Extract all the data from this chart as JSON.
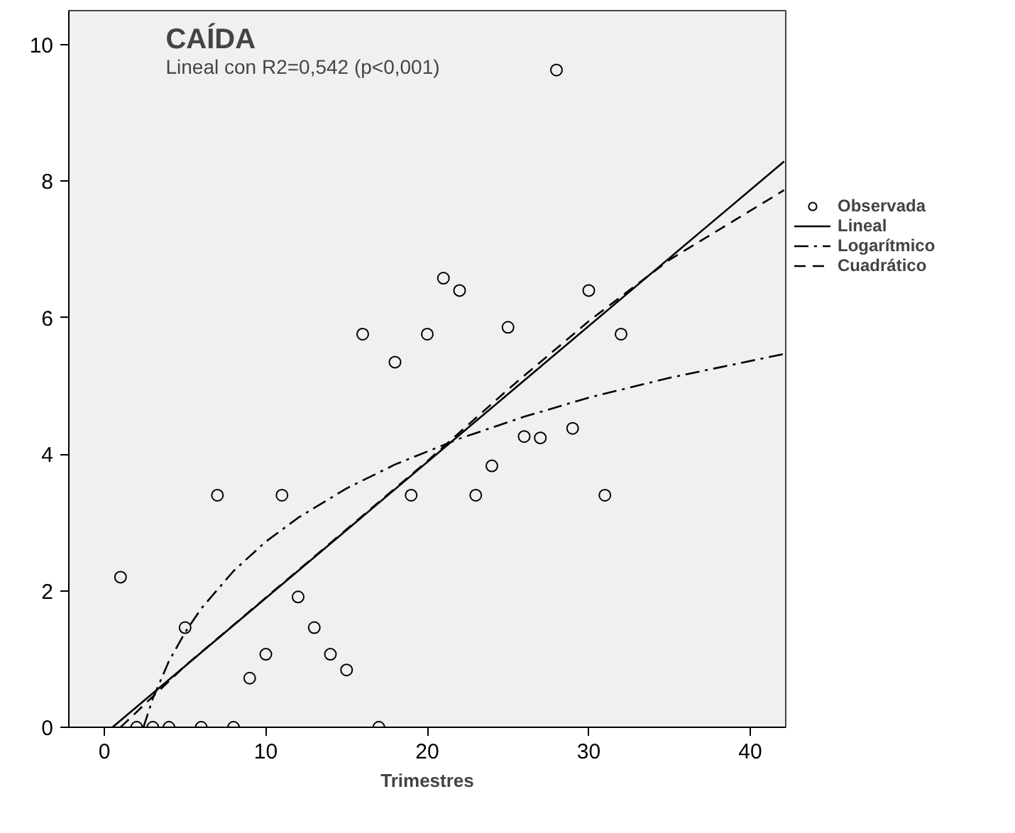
{
  "chart_data": {
    "type": "scatter",
    "title": "CAÍDA",
    "subtitle": "Lineal con R2=0,542 (p<0,001)",
    "xlabel": "Trimestres",
    "xlim": [
      -2.2,
      42.2
    ],
    "ylim": [
      0,
      10.5
    ],
    "xticks": [
      0,
      10,
      20,
      30,
      40
    ],
    "yticks": [
      0,
      2,
      4,
      6,
      8,
      10
    ],
    "grid": false,
    "legend": "right",
    "series": [
      {
        "name": "Observada",
        "type": "scatter",
        "marker": "circle",
        "color": "#000000",
        "x": [
          1,
          2,
          3,
          4,
          5,
          6,
          7,
          8,
          9,
          10,
          11,
          12,
          13,
          14,
          15,
          16,
          17,
          18,
          19,
          20,
          21,
          22,
          23,
          24,
          25,
          26,
          27,
          28,
          29,
          30,
          31,
          32
        ],
        "values": [
          2.2,
          0,
          0,
          0,
          1.46,
          0,
          3.4,
          0,
          0.72,
          1.07,
          3.4,
          1.91,
          1.46,
          1.07,
          0.84,
          5.76,
          0,
          5.35,
          3.4,
          5.76,
          6.58,
          6.4,
          3.4,
          3.83,
          5.86,
          4.26,
          4.24,
          9.63,
          4.38,
          6.4,
          3.4,
          5.76
        ]
      },
      {
        "name": "Lineal",
        "type": "line",
        "line_style": "solid",
        "color": "#000000",
        "x": [
          0.5,
          42.1
        ],
        "values": [
          0,
          8.29
        ]
      },
      {
        "name": "Logarítmico",
        "type": "line",
        "line_style": "dashdot",
        "color": "#000000",
        "x": [
          2.42,
          3,
          4,
          5,
          6,
          8,
          10,
          12,
          15,
          18,
          22,
          26,
          30,
          35,
          42.1
        ],
        "values": [
          0,
          0.42,
          0.97,
          1.39,
          1.74,
          2.29,
          2.72,
          3.07,
          3.5,
          3.85,
          4.23,
          4.55,
          4.83,
          5.12,
          5.47
        ]
      },
      {
        "name": "Cuadrático",
        "type": "line",
        "line_style": "dashed",
        "color": "#000000",
        "x": [
          1,
          5,
          10,
          15,
          20,
          25,
          30,
          35,
          42.1
        ],
        "values": [
          0,
          0.9,
          1.9,
          2.9,
          3.9,
          4.95,
          5.95,
          6.85,
          7.87
        ]
      }
    ]
  }
}
